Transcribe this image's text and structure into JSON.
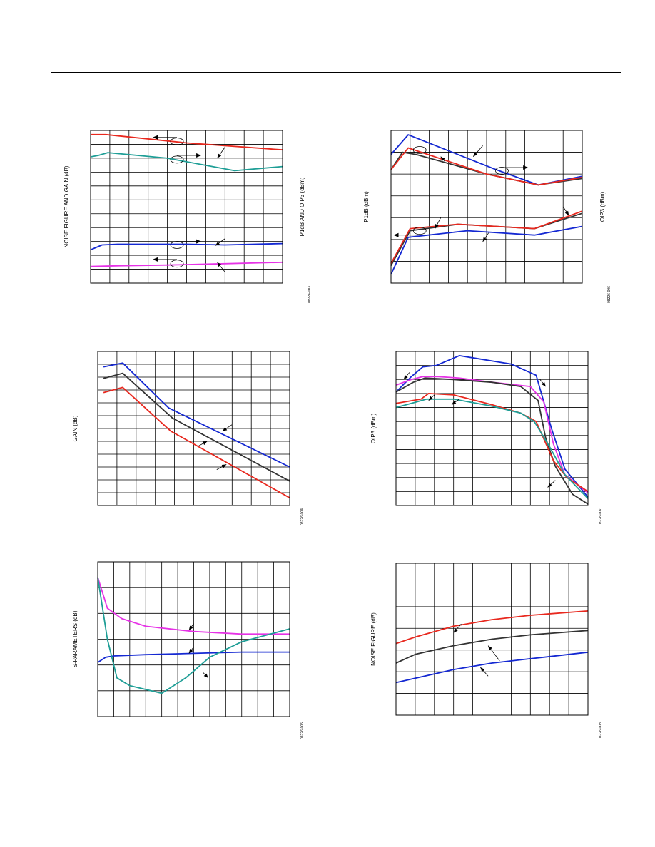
{
  "page": {
    "header_title": ""
  },
  "chart_data": [
    {
      "id": "c1",
      "type": "line",
      "grid": true,
      "gridX": 10,
      "gridY": 11,
      "xlim": [
        0,
        10
      ],
      "ylim": [
        0,
        11
      ],
      "ylabel": "NOISE FIGURE AND GAIN (dB)",
      "ylabel_right": "P1dB AND OIP3 (dBm)",
      "figure_id": "08226-003",
      "series": [
        {
          "color": "#e8281e",
          "points": [
            [
              0,
              10.7
            ],
            [
              0.8,
              10.7
            ],
            [
              5,
              10.1
            ],
            [
              10,
              9.6
            ]
          ]
        },
        {
          "color": "#1e9e96",
          "points": [
            [
              0,
              9.1
            ],
            [
              0.4,
              9.2
            ],
            [
              0.9,
              9.4
            ],
            [
              4,
              9.0
            ],
            [
              7.5,
              8.1
            ],
            [
              10,
              8.4
            ]
          ]
        },
        {
          "color": "#1428d2",
          "points": [
            [
              0,
              2.4
            ],
            [
              0.6,
              2.75
            ],
            [
              1.4,
              2.8
            ],
            [
              5,
              2.8
            ],
            [
              7,
              2.75
            ],
            [
              10,
              2.85
            ]
          ]
        },
        {
          "color": "#e632e6",
          "points": [
            [
              0,
              1.2
            ],
            [
              1.5,
              1.25
            ],
            [
              4,
              1.3
            ],
            [
              7,
              1.4
            ],
            [
              10,
              1.5
            ]
          ]
        }
      ],
      "annotations": {
        "ellipses": [
          [
            4.5,
            10.2
          ],
          [
            4.5,
            8.9
          ],
          [
            4.5,
            2.75
          ],
          [
            4.5,
            1.4
          ]
        ],
        "arrows_left": [
          [
            4.5,
            10.5
          ],
          [
            4.5,
            1.7
          ]
        ],
        "arrows_right": [
          [
            4.5,
            9.2
          ],
          [
            4.5,
            3.0
          ]
        ],
        "pointers": [
          [
            6.6,
            9.0,
            7.0,
            9.8
          ],
          [
            6.5,
            2.7,
            7.0,
            3.2
          ],
          [
            6.6,
            1.5,
            7.0,
            0.8
          ]
        ]
      }
    },
    {
      "id": "c2",
      "type": "line",
      "grid": true,
      "gridX": 10,
      "gridY": 7,
      "xlim": [
        0,
        10
      ],
      "ylim": [
        0,
        7
      ],
      "ylabel": "P1dB (dBm)",
      "ylabel_right": "OIP3 (dBm)",
      "figure_id": "08226-006",
      "series": [
        {
          "color": "#1428d2",
          "points": [
            [
              0,
              5.9
            ],
            [
              0.9,
              6.8
            ],
            [
              5.5,
              5.2
            ],
            [
              7.7,
              4.5
            ],
            [
              10,
              4.9
            ]
          ]
        },
        {
          "color": "#333333",
          "points": [
            [
              0,
              5.2
            ],
            [
              0.6,
              6.0
            ],
            [
              1.3,
              5.9
            ],
            [
              5,
              5.0
            ],
            [
              7.7,
              4.5
            ],
            [
              10,
              4.8
            ]
          ]
        },
        {
          "color": "#e8281e",
          "points": [
            [
              0,
              5.2
            ],
            [
              0.9,
              6.2
            ],
            [
              5,
              5.0
            ],
            [
              7.7,
              4.5
            ],
            [
              10,
              4.85
            ]
          ]
        },
        {
          "color": "#1428d2",
          "points": [
            [
              0,
              0.4
            ],
            [
              0.9,
              2.1
            ],
            [
              4,
              2.4
            ],
            [
              7.5,
              2.2
            ],
            [
              10,
              2.6
            ]
          ]
        },
        {
          "color": "#333333",
          "points": [
            [
              0,
              0.8
            ],
            [
              1.0,
              2.4
            ],
            [
              3.5,
              2.7
            ],
            [
              7.5,
              2.5
            ],
            [
              10,
              3.2
            ]
          ]
        },
        {
          "color": "#e8281e",
          "points": [
            [
              0,
              0.9
            ],
            [
              1.0,
              2.5
            ],
            [
              3.5,
              2.7
            ],
            [
              7.5,
              2.5
            ],
            [
              10,
              3.3
            ]
          ]
        }
      ],
      "annotations": {
        "ellipses": [
          [
            1.5,
            6.1
          ],
          [
            5.8,
            5.15
          ],
          [
            1.5,
            2.4
          ]
        ],
        "arrows_left": [
          [
            1.4,
            2.2
          ]
        ],
        "arrows_right": [
          [
            5.9,
            5.3
          ]
        ],
        "pointers": [
          [
            2.6,
            5.8,
            2.8,
            5.6
          ],
          [
            4.3,
            5.8,
            4.8,
            6.3
          ],
          [
            2.3,
            2.5,
            2.6,
            3.0
          ],
          [
            4.8,
            1.9,
            5.1,
            2.3
          ],
          [
            9.3,
            3.1,
            9.0,
            3.5
          ]
        ]
      }
    },
    {
      "id": "c3",
      "type": "line",
      "grid": true,
      "gridX": 10,
      "gridY": 12,
      "xlim": [
        0,
        10
      ],
      "ylim": [
        0,
        12
      ],
      "ylabel": "GAIN (dB)",
      "ylabel_right": "",
      "figure_id": "08226-004",
      "series": [
        {
          "color": "#1428d2",
          "points": [
            [
              0.3,
              10.8
            ],
            [
              1.3,
              11.1
            ],
            [
              3.7,
              7.6
            ],
            [
              10,
              3.0
            ]
          ]
        },
        {
          "color": "#333333",
          "points": [
            [
              0.3,
              9.9
            ],
            [
              1.3,
              10.3
            ],
            [
              3.9,
              6.8
            ],
            [
              10,
              1.9
            ]
          ]
        },
        {
          "color": "#e8281e",
          "points": [
            [
              0.3,
              8.8
            ],
            [
              1.3,
              9.2
            ],
            [
              3.8,
              5.8
            ],
            [
              10,
              0.6
            ]
          ]
        }
      ],
      "annotations": {
        "ellipses": [],
        "arrows_left": [],
        "arrows_right": [],
        "pointers": [
          [
            6.5,
            5.8,
            7.0,
            6.3
          ],
          [
            5.7,
            5.0,
            5.2,
            4.6
          ],
          [
            6.7,
            3.2,
            6.2,
            2.8
          ]
        ]
      }
    },
    {
      "id": "c4",
      "type": "line",
      "grid": true,
      "gridX": 10,
      "gridY": 11,
      "xlim": [
        0,
        10
      ],
      "ylim": [
        0,
        11
      ],
      "ylabel": "OIP3 (dBm)",
      "ylabel_right": "",
      "figure_id": "08226-007",
      "series": [
        {
          "color": "#1428d2",
          "points": [
            [
              0,
              8.1
            ],
            [
              0.8,
              9.2
            ],
            [
              1.4,
              9.9
            ],
            [
              2.1,
              10
            ],
            [
              3.3,
              10.7
            ],
            [
              4.2,
              10.5
            ],
            [
              6,
              10.1
            ],
            [
              7.3,
              9.3
            ],
            [
              8.1,
              5.5
            ],
            [
              8.8,
              2.6
            ],
            [
              10,
              0.6
            ]
          ]
        },
        {
          "color": "#e632e6",
          "points": [
            [
              0,
              8.6
            ],
            [
              0.8,
              9.0
            ],
            [
              1.4,
              9.2
            ],
            [
              2.2,
              9.2
            ],
            [
              3.3,
              9.1
            ],
            [
              5,
              8.8
            ],
            [
              7,
              8.5
            ],
            [
              7.7,
              7.4
            ],
            [
              8.2,
              4.4
            ],
            [
              8.8,
              2.2
            ],
            [
              10,
              0.9
            ]
          ]
        },
        {
          "color": "#333333",
          "points": [
            [
              0,
              8.1
            ],
            [
              0.9,
              8.8
            ],
            [
              1.5,
              9.1
            ],
            [
              3,
              9.0
            ],
            [
              5,
              8.8
            ],
            [
              6.5,
              8.5
            ],
            [
              7.4,
              7.5
            ],
            [
              7.8,
              4.8
            ],
            [
              8.3,
              2.8
            ],
            [
              9.2,
              0.8
            ],
            [
              10,
              0.1
            ]
          ]
        },
        {
          "color": "#e8281e",
          "points": [
            [
              0,
              7.3
            ],
            [
              1.3,
              7.6
            ],
            [
              1.7,
              8.0
            ],
            [
              3,
              7.9
            ],
            [
              5,
              7.2
            ],
            [
              6.5,
              6.6
            ],
            [
              7.3,
              6.0
            ],
            [
              8.2,
              3.2
            ],
            [
              8.9,
              2.0
            ],
            [
              10,
              1.0
            ]
          ]
        },
        {
          "color": "#1e9e96",
          "points": [
            [
              0,
              7.0
            ],
            [
              0.8,
              7.3
            ],
            [
              1.6,
              7.6
            ],
            [
              3,
              7.6
            ],
            [
              5,
              7.1
            ],
            [
              6.5,
              6.6
            ],
            [
              7.2,
              6.0
            ],
            [
              8.0,
              4.2
            ],
            [
              8.8,
              2.2
            ],
            [
              10,
              0.5
            ]
          ]
        }
      ],
      "annotations": {
        "ellipses": [],
        "arrows_left": [],
        "arrows_right": [],
        "pointers": [
          [
            0.4,
            9.0,
            0.7,
            9.5
          ],
          [
            1.7,
            7.5,
            2.0,
            7.9
          ],
          [
            2.9,
            7.2,
            3.3,
            7.6
          ],
          [
            7.8,
            8.5,
            7.5,
            9.0
          ],
          [
            7.9,
            1.3,
            8.3,
            1.8
          ]
        ]
      }
    },
    {
      "id": "c5",
      "type": "line",
      "grid": true,
      "gridX": 12,
      "gridY": 6,
      "xlim": [
        0,
        12
      ],
      "ylim": [
        0,
        6
      ],
      "ylabel": "S-PARAMETERS (dB)",
      "ylabel_right": "",
      "figure_id": "08226-005",
      "series": [
        {
          "color": "#e632e6",
          "points": [
            [
              0,
              5.4
            ],
            [
              0.6,
              4.2
            ],
            [
              1.5,
              3.8
            ],
            [
              3,
              3.5
            ],
            [
              6,
              3.3
            ],
            [
              9,
              3.2
            ],
            [
              12,
              3.2
            ]
          ]
        },
        {
          "color": "#1428d2",
          "points": [
            [
              0,
              2.1
            ],
            [
              0.5,
              2.3
            ],
            [
              1,
              2.35
            ],
            [
              3,
              2.4
            ],
            [
              6,
              2.45
            ],
            [
              9,
              2.5
            ],
            [
              12,
              2.5
            ]
          ]
        },
        {
          "color": "#1e9e96",
          "points": [
            [
              0,
              5.4
            ],
            [
              0.6,
              3.0
            ],
            [
              1.2,
              1.5
            ],
            [
              2,
              1.2
            ],
            [
              4,
              0.9
            ],
            [
              5.5,
              1.5
            ],
            [
              7,
              2.3
            ],
            [
              9,
              2.9
            ],
            [
              12,
              3.4
            ]
          ]
        }
      ],
      "annotations": {
        "ellipses": [],
        "arrows_left": [],
        "arrows_right": [],
        "pointers": [
          [
            5.7,
            3.35,
            6.0,
            3.6
          ],
          [
            5.7,
            2.45,
            6.0,
            2.7
          ],
          [
            6.9,
            1.5,
            6.6,
            1.7
          ]
        ]
      }
    },
    {
      "id": "c6",
      "type": "line",
      "grid": true,
      "gridX": 10,
      "gridY": 7,
      "xlim": [
        0,
        10
      ],
      "ylim": [
        0,
        7
      ],
      "ylabel": "NOISE FIGURE (dB)",
      "ylabel_right": "",
      "figure_id": "08226-008",
      "series": [
        {
          "color": "#e8281e",
          "points": [
            [
              0,
              3.3
            ],
            [
              1,
              3.6
            ],
            [
              3,
              4.1
            ],
            [
              5,
              4.4
            ],
            [
              7,
              4.6
            ],
            [
              10,
              4.8
            ]
          ]
        },
        {
          "color": "#333333",
          "points": [
            [
              0,
              2.4
            ],
            [
              1,
              2.8
            ],
            [
              3,
              3.2
            ],
            [
              5,
              3.5
            ],
            [
              7,
              3.7
            ],
            [
              10,
              3.9
            ]
          ]
        },
        {
          "color": "#1428d2",
          "points": [
            [
              0,
              1.5
            ],
            [
              1,
              1.7
            ],
            [
              3,
              2.1
            ],
            [
              5,
              2.4
            ],
            [
              7,
              2.6
            ],
            [
              10,
              2.9
            ]
          ]
        }
      ],
      "annotations": {
        "ellipses": [],
        "arrows_left": [],
        "arrows_right": [],
        "pointers": [
          [
            3.0,
            3.8,
            3.4,
            4.2
          ],
          [
            4.8,
            3.2,
            5.4,
            2.5
          ],
          [
            4.4,
            2.2,
            4.8,
            1.8
          ]
        ]
      }
    }
  ]
}
